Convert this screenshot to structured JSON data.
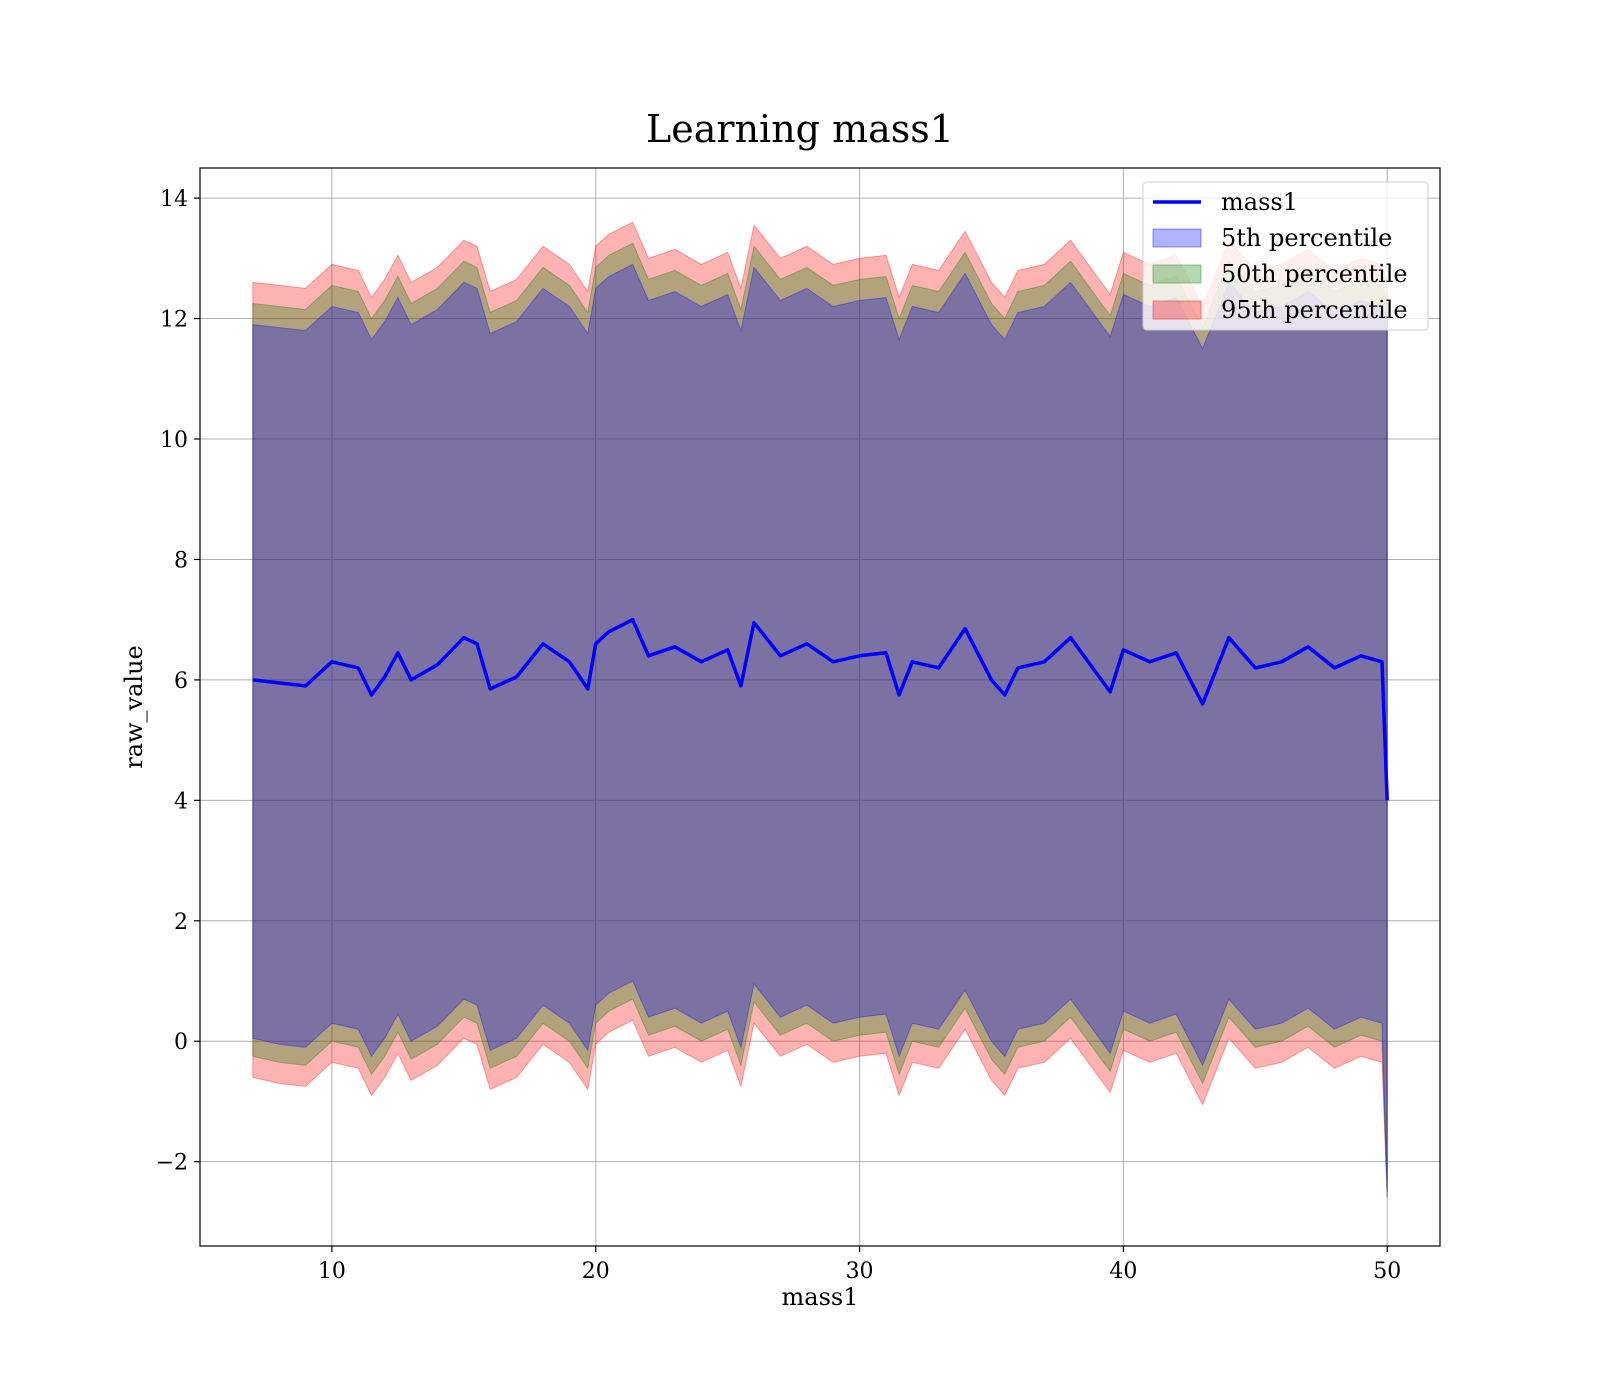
{
  "chart_data": {
    "type": "area",
    "title": "Learning mass1",
    "xlabel": "mass1",
    "ylabel": "raw_value",
    "xlim": [
      5,
      52
    ],
    "ylim": [
      -3.4,
      14.5
    ],
    "xticks": [
      10,
      20,
      30,
      40,
      50
    ],
    "yticks": [
      -2,
      0,
      2,
      4,
      6,
      8,
      10,
      12,
      14
    ],
    "grid": true,
    "legend_position": "top-right",
    "colors": {
      "line": "#0000ff",
      "p5": "#0000ff",
      "p50": "#008000",
      "p95": "#ff0000"
    },
    "legend": [
      {
        "label": "mass1",
        "kind": "line",
        "color": "#0000ff"
      },
      {
        "label": "5th percentile",
        "kind": "patch",
        "color": "#0000ff"
      },
      {
        "label": "50th percentile",
        "kind": "patch",
        "color": "#008000"
      },
      {
        "label": "95th percentile",
        "kind": "patch",
        "color": "#ff0000"
      }
    ],
    "x": [
      7,
      8,
      9,
      10,
      11,
      11.5,
      12,
      12.5,
      13,
      14,
      15,
      15.5,
      16,
      17,
      18,
      19,
      19.7,
      20,
      20.5,
      21.4,
      22,
      23,
      24,
      25,
      25.5,
      26,
      27,
      28,
      29,
      30,
      31,
      31.5,
      32,
      33,
      34,
      35,
      35.5,
      36,
      37,
      38,
      39,
      39.5,
      40,
      41,
      42,
      43,
      44,
      45,
      46,
      47,
      48,
      49,
      49.8,
      50
    ],
    "series": [
      {
        "name": "mass1",
        "values": [
          6.0,
          5.95,
          5.9,
          6.3,
          6.2,
          5.75,
          6.05,
          6.45,
          6.0,
          6.25,
          6.7,
          6.6,
          5.85,
          6.05,
          6.6,
          6.3,
          5.85,
          6.6,
          6.8,
          7.0,
          6.4,
          6.55,
          6.3,
          6.5,
          5.9,
          6.95,
          6.4,
          6.6,
          6.3,
          6.4,
          6.45,
          5.75,
          6.3,
          6.2,
          6.85,
          6.0,
          5.75,
          6.2,
          6.3,
          6.7,
          6.1,
          5.8,
          6.5,
          6.3,
          6.45,
          5.6,
          6.7,
          6.2,
          6.3,
          6.55,
          6.2,
          6.4,
          6.3,
          4.0
        ]
      },
      {
        "name": "5th percentile",
        "values": [
          0.05,
          -0.05,
          -0.1,
          0.3,
          0.2,
          -0.25,
          0.05,
          0.45,
          0.0,
          0.25,
          0.7,
          0.6,
          -0.15,
          0.05,
          0.6,
          0.3,
          -0.15,
          0.6,
          0.8,
          1.0,
          0.4,
          0.55,
          0.3,
          0.5,
          -0.1,
          0.95,
          0.4,
          0.6,
          0.3,
          0.4,
          0.45,
          -0.25,
          0.3,
          0.2,
          0.85,
          0.0,
          -0.25,
          0.2,
          0.3,
          0.7,
          0.1,
          -0.2,
          0.5,
          0.3,
          0.45,
          -0.4,
          0.7,
          0.2,
          0.3,
          0.55,
          0.2,
          0.4,
          0.3,
          -2.5
        ]
      },
      {
        "name": "50th percentile",
        "values": [
          -0.25,
          -0.35,
          -0.4,
          0.0,
          -0.1,
          -0.55,
          -0.25,
          0.15,
          -0.3,
          -0.05,
          0.4,
          0.3,
          -0.45,
          -0.25,
          0.3,
          0.0,
          -0.45,
          0.3,
          0.5,
          0.7,
          0.1,
          0.25,
          0.0,
          0.2,
          -0.4,
          0.65,
          0.1,
          0.3,
          0.0,
          0.1,
          0.15,
          -0.55,
          0.0,
          -0.1,
          0.55,
          -0.3,
          -0.55,
          -0.1,
          0.0,
          0.4,
          -0.2,
          -0.5,
          0.2,
          0.0,
          0.15,
          -0.7,
          0.4,
          -0.1,
          0.0,
          0.25,
          -0.1,
          0.1,
          0.0,
          -2.6
        ]
      },
      {
        "name": "95th percentile",
        "values": [
          -0.6,
          -0.7,
          -0.75,
          -0.35,
          -0.45,
          -0.9,
          -0.6,
          -0.2,
          -0.65,
          -0.4,
          0.05,
          -0.05,
          -0.8,
          -0.6,
          -0.05,
          -0.35,
          -0.8,
          -0.05,
          0.15,
          0.35,
          -0.25,
          -0.1,
          -0.35,
          -0.15,
          -0.75,
          0.3,
          -0.25,
          -0.05,
          -0.35,
          -0.25,
          -0.2,
          -0.9,
          -0.35,
          -0.45,
          0.2,
          -0.65,
          -0.9,
          -0.45,
          -0.35,
          0.05,
          -0.55,
          -0.85,
          -0.15,
          -0.35,
          -0.2,
          -1.05,
          0.05,
          -0.45,
          -0.35,
          -0.1,
          -0.45,
          -0.25,
          -0.35,
          -2.6
        ]
      }
    ],
    "band_upper": {
      "5th percentile": [
        11.9,
        11.85,
        11.8,
        12.2,
        12.1,
        11.65,
        11.95,
        12.35,
        11.9,
        12.15,
        12.6,
        12.5,
        11.75,
        11.95,
        12.5,
        12.2,
        11.75,
        12.5,
        12.7,
        12.9,
        12.3,
        12.45,
        12.2,
        12.4,
        11.8,
        12.85,
        12.3,
        12.5,
        12.2,
        12.3,
        12.35,
        11.65,
        12.2,
        12.1,
        12.75,
        11.9,
        11.65,
        12.1,
        12.2,
        12.6,
        12.0,
        11.7,
        12.4,
        12.2,
        12.35,
        11.5,
        12.6,
        12.1,
        12.2,
        12.45,
        12.1,
        12.3,
        12.2,
        12.0
      ],
      "50th percentile": [
        12.25,
        12.2,
        12.15,
        12.55,
        12.45,
        12.0,
        12.3,
        12.7,
        12.25,
        12.5,
        12.95,
        12.85,
        12.1,
        12.3,
        12.85,
        12.55,
        12.1,
        12.85,
        13.05,
        13.25,
        12.65,
        12.8,
        12.55,
        12.75,
        12.15,
        13.2,
        12.65,
        12.85,
        12.55,
        12.65,
        12.7,
        12.0,
        12.55,
        12.45,
        13.1,
        12.25,
        12.0,
        12.45,
        12.55,
        12.95,
        12.35,
        12.05,
        12.75,
        12.55,
        12.7,
        11.85,
        12.95,
        12.45,
        12.55,
        12.8,
        12.45,
        12.65,
        12.55,
        12.3
      ],
      "95th percentile": [
        12.6,
        12.55,
        12.5,
        12.9,
        12.8,
        12.35,
        12.65,
        13.05,
        12.6,
        12.85,
        13.3,
        13.2,
        12.45,
        12.65,
        13.2,
        12.9,
        12.45,
        13.2,
        13.4,
        13.6,
        13.0,
        13.15,
        12.9,
        13.1,
        12.5,
        13.55,
        13.0,
        13.2,
        12.9,
        13.0,
        13.05,
        12.35,
        12.9,
        12.8,
        13.45,
        12.6,
        12.35,
        12.8,
        12.9,
        13.3,
        12.7,
        12.4,
        13.1,
        12.9,
        13.05,
        12.2,
        13.3,
        12.8,
        12.9,
        13.15,
        12.8,
        13.0,
        12.9,
        12.6
      ]
    }
  }
}
